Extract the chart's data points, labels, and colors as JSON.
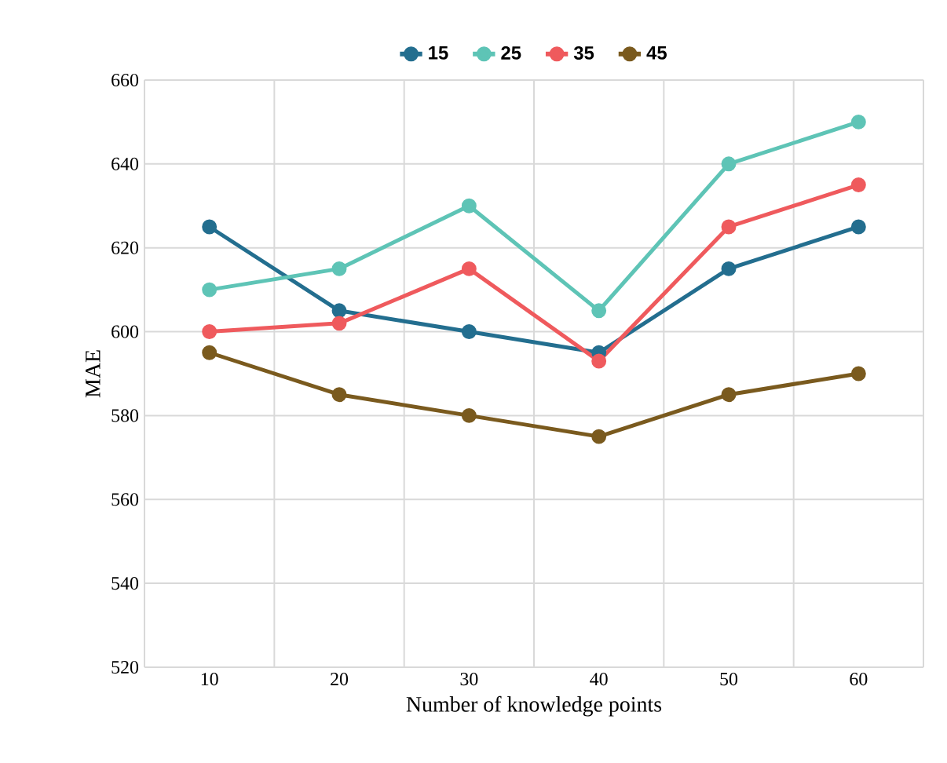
{
  "chart_data": {
    "type": "line",
    "xlabel": "Number of knowledge points",
    "ylabel": "MAE",
    "categories": [
      "10",
      "20",
      "30",
      "40",
      "50",
      "60"
    ],
    "series": [
      {
        "name": "15",
        "color": "#236e8f",
        "values": [
          625,
          605,
          600,
          595,
          615,
          625
        ]
      },
      {
        "name": "25",
        "color": "#5ec4b6",
        "values": [
          610,
          615,
          630,
          605,
          640,
          650
        ]
      },
      {
        "name": "35",
        "color": "#ef5a5d",
        "values": [
          600,
          602,
          615,
          593,
          625,
          635
        ]
      },
      {
        "name": "45",
        "color": "#7a5a1e",
        "values": [
          595,
          585,
          580,
          575,
          585,
          590
        ]
      }
    ],
    "ylim": [
      520,
      660
    ],
    "yticks": [
      520,
      540,
      560,
      580,
      600,
      620,
      640,
      660
    ],
    "grid": true,
    "legend": "top",
    "marker": "circle",
    "line_style": "solid"
  }
}
